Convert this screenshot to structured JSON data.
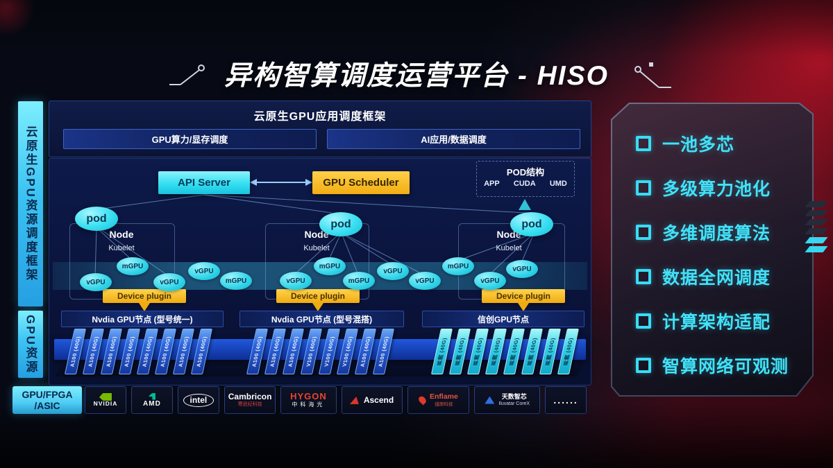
{
  "title": "异构智算调度运营平台 - HISO",
  "sidebar": {
    "framework": "云原生GPU资源调度框架",
    "gpu_resource": "GPU资源",
    "hardware_line1": "GPU/FPGA",
    "hardware_line2": "/ASIC"
  },
  "app_framework": {
    "title": "云原生GPU应用调度框架",
    "left_item": "GPU算力/显存调度",
    "right_item": "AI应用/数据调度"
  },
  "control_plane": {
    "api_server": "API Server",
    "gpu_scheduler": "GPU Scheduler"
  },
  "pod_structure": {
    "title": "POD结构",
    "items": [
      "APP",
      "CUDA",
      "UMD"
    ]
  },
  "clusters": [
    {
      "pod": "pod",
      "node": "Node",
      "agent": "Kubelet",
      "plugin": "Device plugin"
    },
    {
      "pod": "pod",
      "node": "Node",
      "agent": "Kubelet",
      "plugin": "Device plugin"
    },
    {
      "pod": "pod",
      "node": "Node",
      "agent": "Kubelet",
      "plugin": "Device plugin"
    }
  ],
  "gpu_ellipses": [
    "vGPU",
    "mGPU",
    "vGPU",
    "vGPU",
    "mGPU",
    "vGPU",
    "mGPU",
    "mGPU",
    "vGPU",
    "vGPU",
    "mGPU",
    "vGPU",
    "vGPU"
  ],
  "gpu_nodes": [
    {
      "title": "Nvdia GPU节点 (型号统一)",
      "cards": [
        "A100 (40G)",
        "A100 (40G)",
        "A100 (40G)",
        "A100 (40G)",
        "A100 (40G)",
        "A100 (40G)",
        "A100 (40G)",
        "A100 (40G)"
      ]
    },
    {
      "title": "Nvdia GPU节点 (型号混搭)",
      "cards": [
        "A100 (40G)",
        "A100 (40G)",
        "A100 (40G)",
        "V100 (40G)",
        "V100 (40G)",
        "V100 (40G)",
        "A100 (40G)",
        "A100 (40G)"
      ]
    },
    {
      "title": "信创GPU节点",
      "cards": [
        "昇腾 (40G)",
        "昇腾 (40G)",
        "昇腾 (40G)",
        "昇腾 (40G)",
        "昇腾 (40G)",
        "昇腾 (40G)",
        "昇腾 (40G)",
        "昇腾 (40G)"
      ]
    }
  ],
  "features": [
    "一池多芯",
    "多级算力池化",
    "多维调度算法",
    "数据全网调度",
    "计算架构适配",
    "智算网络可观测"
  ],
  "vendors": [
    {
      "icon": "nvidia-logo",
      "name": "NVIDIA"
    },
    {
      "icon": "amd-logo",
      "name": "AMD"
    },
    {
      "icon": "intel-logo",
      "name": "intel"
    },
    {
      "icon": "cambricon-logo",
      "name": "Cambricon",
      "sub": "寒武纪科技"
    },
    {
      "icon": "hygon-logo",
      "name": "HYGON",
      "sub": "中科海光"
    },
    {
      "icon": "ascend-logo",
      "name": "Ascend"
    },
    {
      "icon": "enflame-logo",
      "name": "Enflame",
      "sub": "燧原科技"
    },
    {
      "icon": "iluvatar-logo",
      "name": "天数智芯",
      "sub": "Iluvatar CoreX"
    },
    {
      "icon": "dots-icon",
      "name": "......"
    }
  ],
  "colors": {
    "accent_cyan": "#35d8f0",
    "accent_yellow": "#f2ad12",
    "card_blue": "#2e64da",
    "card_cyan": "#39d2e8",
    "nvidia_green": "#76b900",
    "red_accent": "#e0392b"
  }
}
